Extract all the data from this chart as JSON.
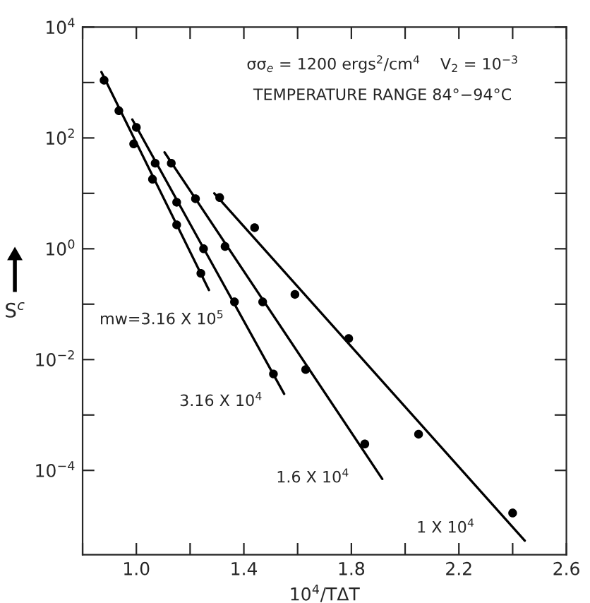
{
  "chart_data": {
    "type": "scatter",
    "xlabel": "10$^{4}$/TΔT",
    "ylabel": "S$^{c}$",
    "log": "y",
    "grid": false,
    "legend": false,
    "marker": "circle",
    "xlim": [
      0.8,
      2.6
    ],
    "xticks": [
      {
        "value": 0.8,
        "label": null
      },
      {
        "value": 1.0,
        "label": "1.0"
      },
      {
        "value": 1.2,
        "label": null
      },
      1.4,
      {
        "value": 1.6,
        "label": null
      },
      1.8,
      {
        "value": 2.0,
        "label": null
      },
      2.2,
      {
        "value": 2.4,
        "label": null
      },
      2.6
    ],
    "ylim": [
      3e-06,
      10000
    ],
    "yticks": [
      {
        "value": 0.0001,
        "label": "10$^{−4}$"
      },
      {
        "value": 0.001,
        "label": null
      },
      {
        "value": 0.01,
        "label": "10$^{−2}$"
      },
      {
        "value": 0.1,
        "label": null
      },
      {
        "value": 1,
        "label": "10$^{0}$"
      },
      {
        "value": 10,
        "label": null
      },
      {
        "value": 100,
        "label": "10$^{2}$"
      },
      {
        "value": 1000,
        "label": null
      },
      {
        "value": 10000,
        "label": "10$^{4}$"
      }
    ],
    "series": [
      {
        "color": "#000000",
        "x": [
          0.88,
          0.935,
          0.99,
          1.06,
          1.15,
          1.24
        ],
        "values": [
          1100,
          310,
          78,
          18,
          2.7,
          0.36
        ]
      },
      {
        "color": "#000000",
        "x": [
          1.0,
          1.07,
          1.15,
          1.25,
          1.365,
          1.51
        ],
        "values": [
          155,
          35,
          6.9,
          1.0,
          0.11,
          0.0055
        ]
      },
      {
        "color": "#000000",
        "x": [
          1.13,
          1.22,
          1.33,
          1.47,
          1.63,
          1.85
        ],
        "values": [
          35,
          8,
          1.1,
          0.11,
          0.0066,
          0.0003
        ]
      },
      {
        "color": "#000000",
        "x": [
          1.31,
          1.44,
          1.59,
          1.79,
          2.05,
          2.4
        ],
        "values": [
          8.4,
          2.4,
          0.15,
          0.024,
          0.00045,
          1.7e-05
        ]
      },
      {
        "type": "line",
        "marker": "none",
        "color": "#000000",
        "x": [
          0.87,
          1.27
        ],
        "values": [
          1550,
          0.18
        ]
      },
      {
        "type": "line",
        "marker": "none",
        "color": "#000000",
        "x": [
          0.985,
          1.55
        ],
        "values": [
          215,
          0.0024
        ]
      },
      {
        "type": "line",
        "marker": "none",
        "color": "#000000",
        "x": [
          1.105,
          1.915
        ],
        "values": [
          55,
          7e-05
        ]
      },
      {
        "type": "line",
        "marker": "none",
        "color": "#000000",
        "x": [
          1.29,
          2.445
        ],
        "values": [
          10,
          5.4e-06
        ]
      }
    ],
    "annotations": [
      "σσ$_{e}$ = 1200 ergs$^{2}$/cm$^{4}$    V$_{2}$ = 10$^{−3}$",
      "TEMPERATURE RANGE 84°−94°C",
      "mw=3.16 X 10$^{5}$",
      "3.16 X 10$^{4}$",
      "1.6 X 10$^{4}$",
      "1 X 10$^{4}$"
    ]
  }
}
